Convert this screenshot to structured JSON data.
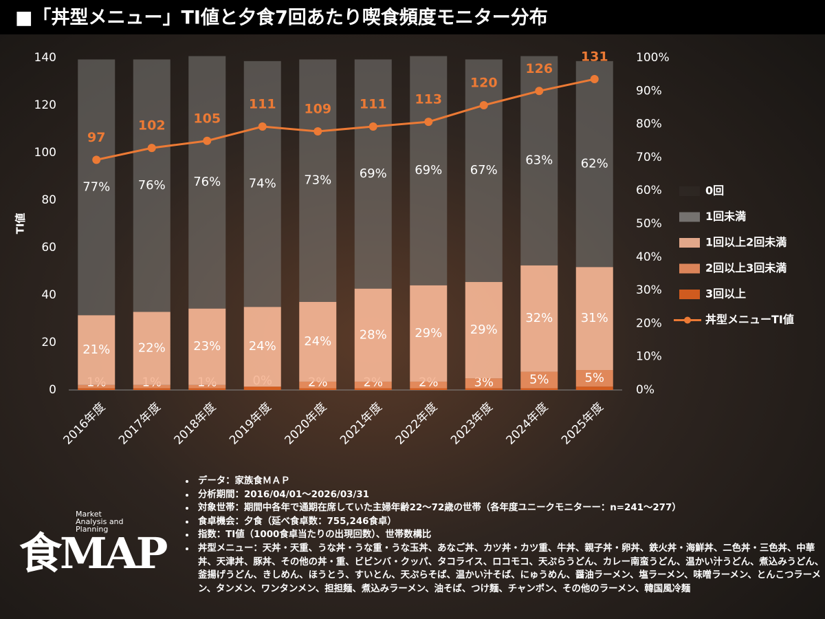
{
  "chart_data": {
    "type": "bar-line",
    "title": "■「丼型メニュー」TI値と夕食7回あたり喫食頻度モニター分布",
    "y_label": "TI値",
    "categories": [
      "2016年度",
      "2017年度",
      "2018年度",
      "2019年度",
      "2020年度",
      "2021年度",
      "2022年度",
      "2023年度",
      "2024年度",
      "2025年度"
    ],
    "ylim": [
      0,
      140
    ],
    "yticks": [
      0,
      20,
      40,
      60,
      80,
      100,
      120,
      140
    ],
    "y2lim": [
      0,
      100
    ],
    "y2ticks": [
      {
        "value": 0,
        "label": "0%"
      },
      {
        "value": 10,
        "label": "10%"
      },
      {
        "value": 20,
        "label": "20%"
      },
      {
        "value": 30,
        "label": "30%"
      },
      {
        "value": 40,
        "label": "40%"
      },
      {
        "value": 50,
        "label": "50%"
      },
      {
        "value": 60,
        "label": "60%"
      },
      {
        "value": 70,
        "label": "70%"
      },
      {
        "value": 80,
        "label": "80%"
      },
      {
        "value": 90,
        "label": "90%"
      },
      {
        "value": 100,
        "label": "100%"
      }
    ],
    "series": [
      {
        "name": "3回以上",
        "color": "#e2621f",
        "axis": "y2",
        "values": [
          0.5,
          0.5,
          0.5,
          1,
          0.5,
          0.5,
          0.5,
          0.5,
          0.5,
          1
        ]
      },
      {
        "name": "2回以上3回未満",
        "color": "#ef9060",
        "axis": "y2",
        "values": [
          1,
          1,
          1,
          0,
          2,
          2,
          2,
          3,
          5,
          5
        ],
        "value_labels": [
          "1%",
          "1%",
          "1%",
          "0%",
          "2%",
          "2%",
          "2%",
          "3%",
          "5%",
          "5%"
        ]
      },
      {
        "name": "1回以上2回未満",
        "color": "#f6b696",
        "axis": "y2",
        "values": [
          21,
          22,
          23,
          24,
          24,
          28,
          29,
          29,
          32,
          31
        ],
        "value_labels": [
          "21%",
          "22%",
          "23%",
          "24%",
          "24%",
          "28%",
          "29%",
          "29%",
          "32%",
          "31%"
        ]
      },
      {
        "name": "1回未満",
        "color": "#7d7b79",
        "axis": "y2",
        "values": [
          77,
          76,
          76,
          74,
          73,
          69,
          69,
          67,
          63,
          62
        ],
        "value_labels": [
          "77%",
          "76%",
          "76%",
          "74%",
          "73%",
          "69%",
          "69%",
          "67%",
          "63%",
          "62%"
        ]
      },
      {
        "name": "0回",
        "color": "#3a3633",
        "axis": "y2",
        "values": [
          0,
          0,
          0,
          0,
          0,
          0,
          0,
          0,
          0,
          0
        ]
      },
      {
        "name": "丼型メニューTI値",
        "color": "#ec7a35",
        "type": "line",
        "values": [
          97,
          102,
          105,
          111,
          109,
          111,
          113,
          120,
          126,
          131
        ]
      }
    ]
  },
  "notes": [
    "データ：家族食ＭＡＰ",
    "分析期間：2016/04/01～2026/03/31",
    "対象世帯：期間中各年で通期在席していた主婦年齢22～72歳の世帯（各年度ユニークモニターー：n=241～277）",
    "食卓機会：夕食（延べ食卓数：755,246食卓）",
    "指数：TI値（1000食卓当たりの出現回数）、世帯数構比",
    "丼型メニュー：天丼・天重、うな丼・うな重・うな玉丼、あなご丼、カツ丼・カツ重、牛丼、親子丼・卵丼、鉄火丼・海鮮丼、二色丼・三色丼、中華丼、天津丼、豚丼、その他の丼・重、ビビンバ・クッパ、タコライス、ロコモコ、天ぷらうどん、カレー南蛮うどん、温かい汁うどん、煮込みうどん、釜揚げうどん、きしめん、ほうとう、すいとん、天ぷらそば、温かい汁そば、にゅうめん、醤油ラーメン、塩ラーメン、味噌ラーメン、とんこつラーメン、タンメン、ワンタンメン、担担麺、煮込みラーメン、油そば、つけ麺、チャンポン、その他のラーメン、韓国風冷麺"
  ],
  "logo": {
    "tagline": "Market Analysis and Planning",
    "mark": "食MAP"
  }
}
